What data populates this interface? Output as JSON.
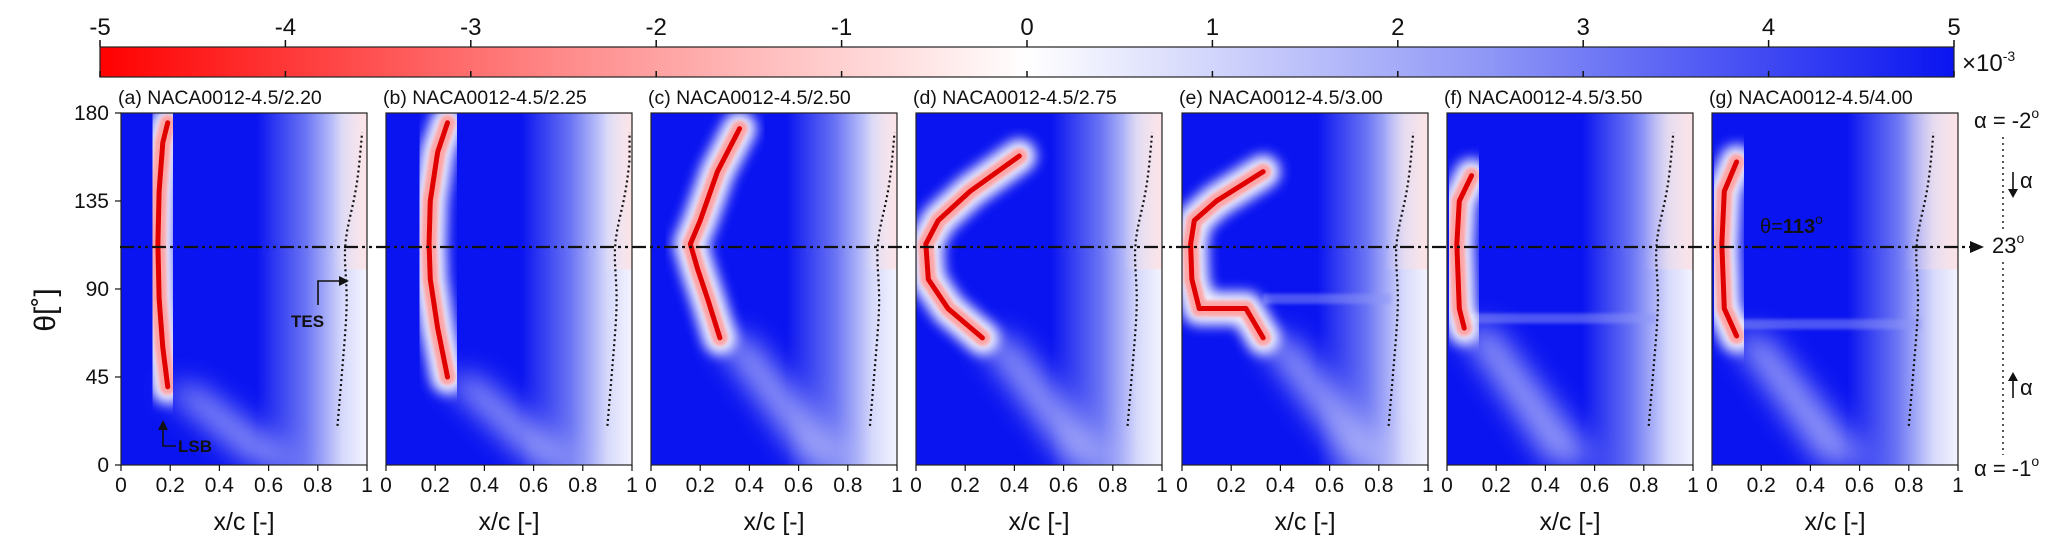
{
  "colors": {
    "negative": "#ff0000",
    "zero": "#ffffff",
    "positive": "#0a14f0",
    "reference_line": "#111111"
  },
  "chart_data": {
    "type": "heatmap",
    "colorbar": {
      "ticks": [
        -5,
        -4,
        -3,
        -2,
        -1,
        0,
        1,
        2,
        3,
        4,
        5
      ],
      "tick_labels": [
        "-5",
        "-4",
        "-3",
        "-2",
        "-1",
        "0",
        "1",
        "2",
        "3",
        "4",
        "5"
      ],
      "range": [
        -5,
        5
      ],
      "unit_label": "×10",
      "unit_exponent": "-3"
    },
    "xlabel": "x/c [-]",
    "ylabel": "θ[˚]",
    "xlim": [
      0,
      1
    ],
    "ylim": [
      0,
      180
    ],
    "xticks": [
      0,
      0.2,
      0.4,
      0.6,
      0.8,
      1
    ],
    "xtick_labels": [
      "0",
      "0.2",
      "0.4",
      "0.6",
      "0.8",
      "1"
    ],
    "yticks": [
      0,
      45,
      90,
      135,
      180
    ],
    "ytick_labels": [
      "0",
      "45",
      "90",
      "135",
      "180"
    ],
    "reference_line": {
      "theta": 113,
      "label_prefix": "θ=",
      "label_value": "113",
      "label_unit": "o"
    },
    "annotations": {
      "tes": "TES",
      "lsb": "LSB"
    },
    "alpha_axis": {
      "top_label": "α = -2",
      "top_sup": "o",
      "mid_label": "23",
      "mid_sup": "o",
      "bottom_label": "α = -1",
      "bottom_sup": "o",
      "arrow_label": "α"
    },
    "panels": [
      {
        "title": "(a) NACA0012-4.5/2.20",
        "lsb": [
          [
            40,
            0.19
          ],
          [
            60,
            0.17
          ],
          [
            85,
            0.155
          ],
          [
            113,
            0.15
          ],
          [
            140,
            0.155
          ],
          [
            165,
            0.17
          ],
          [
            175,
            0.19
          ]
        ],
        "tes_x": 0.9,
        "split": null
      },
      {
        "title": "(b) NACA0012-4.5/2.25",
        "lsb": [
          [
            45,
            0.25
          ],
          [
            70,
            0.21
          ],
          [
            95,
            0.18
          ],
          [
            113,
            0.175
          ],
          [
            135,
            0.18
          ],
          [
            160,
            0.21
          ],
          [
            175,
            0.25
          ]
        ],
        "tes_x": 0.92,
        "split": null
      },
      {
        "title": "(c) NACA0012-4.5/2.50",
        "lsb": [
          [
            65,
            0.28
          ],
          [
            85,
            0.23
          ],
          [
            100,
            0.19
          ],
          [
            113,
            0.16
          ],
          [
            125,
            0.2
          ],
          [
            150,
            0.27
          ],
          [
            172,
            0.36
          ]
        ],
        "tes_x": 0.91,
        "split": null
      },
      {
        "title": "(d) NACA0012-4.5/2.75",
        "lsb": [
          [
            65,
            0.27
          ],
          [
            80,
            0.13
          ],
          [
            95,
            0.05
          ],
          [
            113,
            0.04
          ],
          [
            125,
            0.09
          ],
          [
            140,
            0.22
          ],
          [
            158,
            0.42
          ]
        ],
        "tes_x": 0.88,
        "split": null
      },
      {
        "title": "(e) NACA0012-4.5/3.00",
        "lsb": [
          [
            65,
            0.33
          ],
          [
            80,
            0.26
          ],
          [
            80,
            0.07
          ],
          [
            95,
            0.04
          ],
          [
            113,
            0.035
          ],
          [
            125,
            0.05
          ],
          [
            135,
            0.14
          ],
          [
            150,
            0.33
          ]
        ],
        "tes_x": 0.86,
        "split": 85
      },
      {
        "title": "(f) NACA0012-4.5/3.50",
        "lsb": [
          [
            70,
            0.07
          ],
          [
            80,
            0.05
          ],
          [
            113,
            0.04
          ],
          [
            135,
            0.05
          ],
          [
            148,
            0.1
          ]
        ],
        "tes_x": 0.84,
        "split": 75
      },
      {
        "title": "(g) NACA0012-4.5/4.00",
        "lsb": [
          [
            66,
            0.1
          ],
          [
            80,
            0.05
          ],
          [
            113,
            0.04
          ],
          [
            140,
            0.05
          ],
          [
            155,
            0.1
          ]
        ],
        "tes_x": 0.82,
        "split": 72
      }
    ]
  }
}
